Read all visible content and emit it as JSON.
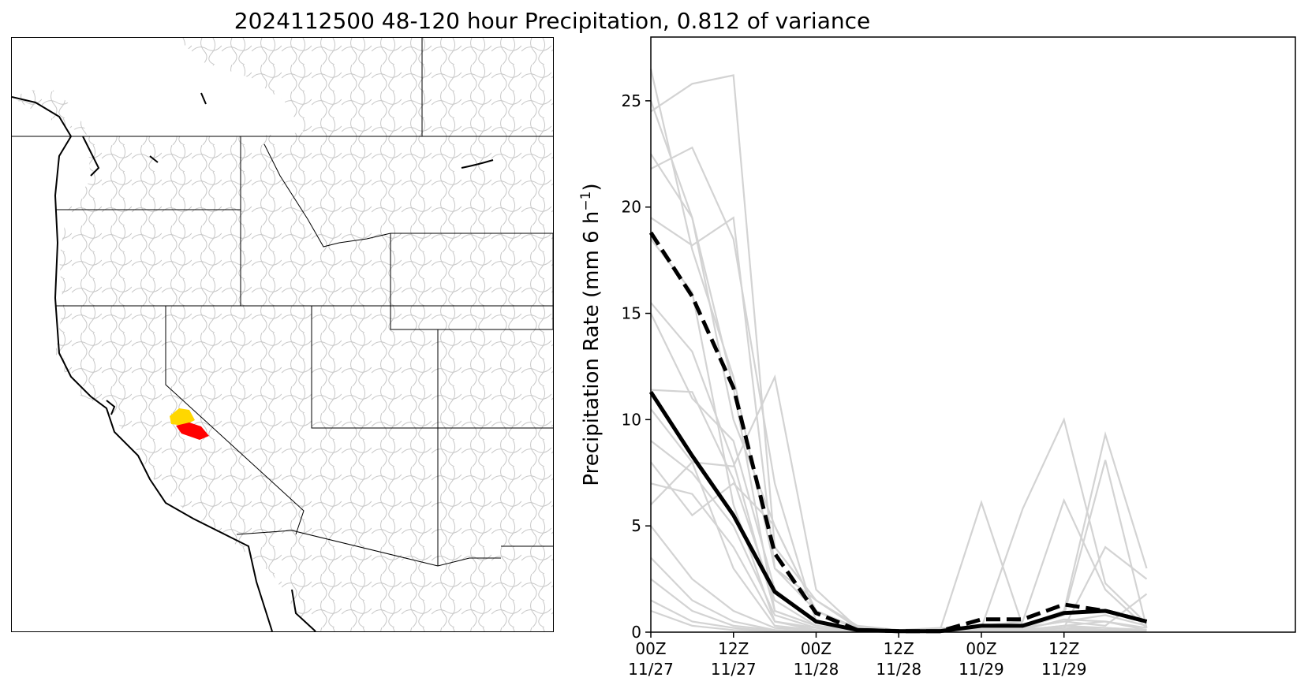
{
  "title": "2024112500 48-120 hour Precipitation, 0.812 of variance",
  "colors": {
    "ensemble": "#d3d3d3",
    "mean": "#000000",
    "dashed": "#000000",
    "basin_yellow": "#ffd700",
    "basin_red": "#ff0000",
    "map_border": "#000000",
    "watershed": "#c8c8c8"
  },
  "map": {
    "highlighted_basins": [
      "yellow",
      "red"
    ]
  },
  "chart_data": {
    "type": "line",
    "title": "",
    "xlabel": "",
    "ylabel": "Precipitation Rate (mm 6 h",
    "ylabel_sup": "−1",
    "ylabel_end": ")",
    "xlim": [
      0,
      15.6
    ],
    "ylim": [
      0,
      28
    ],
    "yticks": [
      0,
      5,
      10,
      15,
      20,
      25
    ],
    "xticks": [
      {
        "x": 0,
        "line1": "00Z",
        "line2": "11/27"
      },
      {
        "x": 2,
        "line1": "12Z",
        "line2": "11/27"
      },
      {
        "x": 4,
        "line1": "00Z",
        "line2": "11/28"
      },
      {
        "x": 6,
        "line1": "12Z",
        "line2": "11/28"
      },
      {
        "x": 8,
        "line1": "00Z",
        "line2": "11/29"
      },
      {
        "x": 10,
        "line1": "12Z",
        "line2": "11/29"
      }
    ],
    "x": [
      0,
      1,
      2,
      3,
      4,
      5,
      6,
      7,
      8,
      9,
      10,
      11,
      12
    ],
    "mean_series": {
      "style": "solid",
      "values": [
        11.3,
        8.3,
        5.5,
        1.9,
        0.5,
        0.1,
        0.05,
        0.05,
        0.3,
        0.3,
        0.9,
        1.0,
        0.5
      ]
    },
    "dashed_series": {
      "style": "dashed",
      "values": [
        18.8,
        15.8,
        11.5,
        3.7,
        0.9,
        0.1,
        0.05,
        0.05,
        0.6,
        0.6,
        1.3,
        1.0,
        0.5
      ]
    },
    "ensemble_series": [
      [
        26.5,
        18.0,
        12.0,
        3.0,
        1.0,
        0.2,
        0.1,
        0.1,
        0.2,
        0.2,
        0.5,
        0.8,
        0.3
      ],
      [
        24.5,
        25.8,
        26.2,
        4.0,
        1.5,
        0.3,
        0.1,
        0.2,
        0.1,
        0.1,
        0.6,
        0.5,
        0.2
      ],
      [
        25.0,
        19.5,
        10.0,
        5.0,
        1.0,
        0.2,
        0.1,
        0.1,
        0.2,
        5.8,
        10.0,
        2.3,
        0.4
      ],
      [
        22.5,
        19.5,
        11.5,
        1.0,
        0.3,
        0.1,
        0.05,
        0.1,
        6.1,
        0.3,
        1.0,
        9.3,
        3.0
      ],
      [
        21.8,
        22.8,
        18.5,
        7.0,
        0.5,
        0.1,
        0.05,
        0.05,
        0.3,
        0.5,
        6.2,
        2.0,
        0.2
      ],
      [
        19.5,
        18.2,
        19.5,
        3.0,
        1.5,
        0.2,
        0.1,
        0.1,
        0.2,
        0.2,
        0.8,
        8.1,
        0.2
      ],
      [
        18.5,
        16.0,
        6.0,
        0.5,
        0.2,
        0.05,
        0.05,
        0.05,
        0.1,
        0.1,
        0.2,
        4.0,
        2.5
      ],
      [
        15.5,
        13.2,
        8.0,
        1.0,
        0.3,
        0.1,
        0.05,
        0.05,
        0.1,
        0.1,
        0.3,
        0.5,
        0.1
      ],
      [
        15.0,
        11.0,
        9.0,
        2.0,
        0.5,
        0.1,
        0.05,
        0.05,
        0.2,
        0.2,
        0.5,
        0.3,
        1.8
      ],
      [
        11.4,
        11.3,
        7.2,
        1.5,
        0.3,
        0.1,
        0.05,
        0.05,
        0.1,
        0.1,
        0.3,
        0.2,
        0.1
      ],
      [
        10.5,
        8.0,
        7.8,
        12.0,
        2.0,
        0.2,
        0.05,
        0.05,
        0.1,
        0.1,
        0.2,
        0.2,
        0.1
      ],
      [
        9.0,
        7.5,
        5.0,
        0.8,
        0.2,
        0.05,
        0.05,
        0.05,
        0.1,
        0.1,
        0.2,
        0.1,
        0.1
      ],
      [
        8.0,
        5.5,
        7.0,
        5.0,
        1.0,
        0.1,
        0.05,
        0.05,
        0.1,
        0.1,
        0.1,
        0.1,
        0.1
      ],
      [
        7.0,
        6.5,
        4.0,
        0.5,
        0.1,
        0.05,
        0.05,
        0.05,
        0.05,
        0.05,
        0.1,
        0.1,
        0.1
      ],
      [
        6.0,
        8.0,
        3.0,
        0.3,
        0.1,
        0.05,
        0.05,
        0.05,
        0.05,
        0.05,
        0.1,
        0.1,
        0.1
      ],
      [
        5.0,
        2.5,
        1.0,
        0.2,
        0.1,
        0.05,
        0.05,
        0.05,
        0.05,
        0.05,
        0.1,
        0.1,
        0.1
      ],
      [
        3.5,
        1.5,
        0.5,
        0.1,
        0.05,
        0.05,
        0.05,
        0.05,
        0.05,
        0.05,
        0.05,
        0.1,
        0.1
      ],
      [
        2.5,
        1.0,
        0.3,
        0.1,
        0.05,
        0.05,
        0.05,
        0.05,
        0.05,
        0.05,
        0.05,
        0.05,
        0.05
      ],
      [
        1.5,
        0.5,
        0.2,
        0.05,
        0.05,
        0.05,
        0.05,
        0.05,
        0.05,
        0.05,
        0.05,
        0.05,
        0.05
      ],
      [
        1.0,
        0.3,
        0.1,
        0.05,
        0.05,
        0.05,
        0.05,
        0.05,
        0.05,
        0.05,
        0.05,
        0.05,
        0.05
      ]
    ]
  }
}
